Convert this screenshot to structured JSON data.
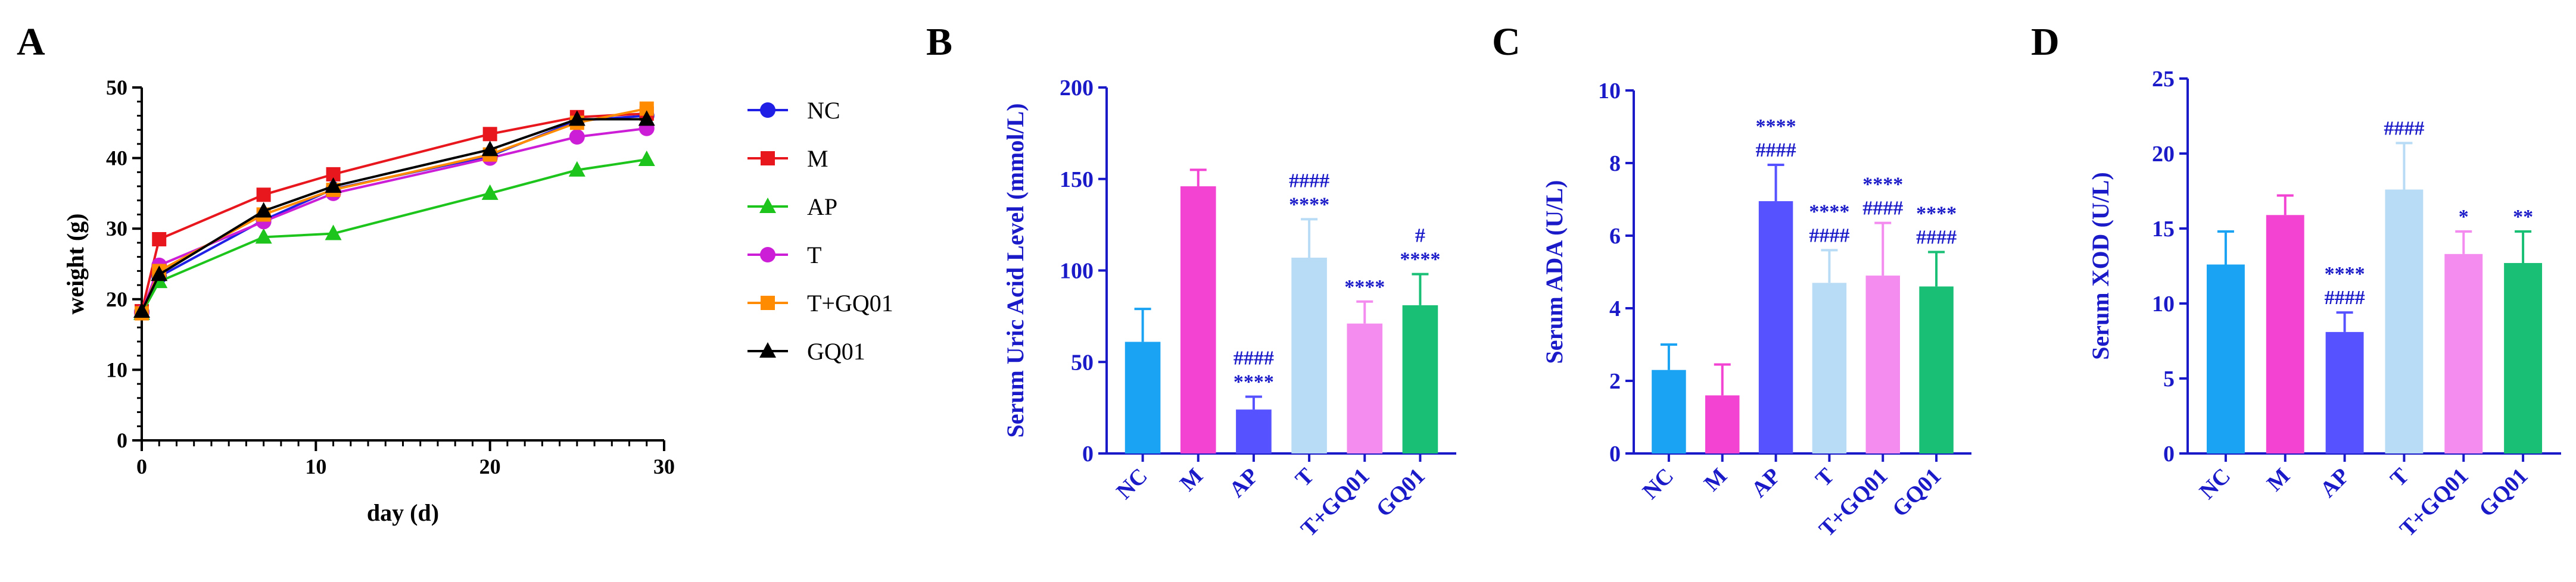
{
  "chart_data": [
    {
      "panel": "A",
      "type": "line",
      "xlabel": "day (d)",
      "ylabel": "weight (g)",
      "xlim": [
        0,
        30
      ],
      "ylim": [
        0,
        50
      ],
      "xticks": [
        0,
        10,
        20,
        30
      ],
      "yticks": [
        0,
        10,
        20,
        30,
        40,
        50
      ],
      "x": [
        0,
        1,
        7,
        11,
        20,
        25,
        29
      ],
      "series": [
        {
          "name": "NC",
          "color": "#1f1fe6",
          "marker": "circle",
          "values": [
            18.2,
            23.2,
            31.2,
            35.6,
            40.3,
            45.3,
            46.0
          ]
        },
        {
          "name": "M",
          "color": "#e8161d",
          "marker": "square",
          "values": [
            18.3,
            28.5,
            34.8,
            37.7,
            43.4,
            45.8,
            46.3
          ]
        },
        {
          "name": "AP",
          "color": "#1cc41c",
          "marker": "triangle",
          "values": [
            18.0,
            22.5,
            28.8,
            29.3,
            35.0,
            38.3,
            39.8
          ]
        },
        {
          "name": "T",
          "color": "#cc1ed6",
          "marker": "circle",
          "values": [
            18.1,
            24.8,
            31.0,
            35.0,
            40.0,
            43.0,
            44.2
          ]
        },
        {
          "name": "T+GQ01",
          "color": "#ff8c00",
          "marker": "square",
          "values": [
            18.0,
            24.0,
            32.0,
            35.5,
            40.5,
            45.0,
            47.0
          ]
        },
        {
          "name": "GQ01",
          "color": "#000000",
          "marker": "triangle",
          "values": [
            18.3,
            23.5,
            32.5,
            36.0,
            41.2,
            45.5,
            45.5
          ]
        }
      ]
    },
    {
      "panel": "B",
      "type": "bar",
      "ylabel": "Serum Uric Acid Level (mmol/L)",
      "ylim": [
        0,
        200
      ],
      "yticks": [
        0,
        50,
        100,
        150,
        200
      ],
      "categories": [
        "NC",
        "M",
        "AP",
        "T",
        "T+GQ01",
        "GQ01"
      ],
      "colors": [
        "#1aa3f2",
        "#f243d2",
        "#5752ff",
        "#b9dcf6",
        "#f48cf0",
        "#18bf74"
      ],
      "values": [
        61,
        146,
        24,
        107,
        71,
        81
      ],
      "errors": [
        18,
        9,
        7,
        21,
        12,
        17
      ],
      "annotations": [
        [],
        [],
        [
          "####",
          "****"
        ],
        [
          "####",
          "****"
        ],
        [
          "****"
        ],
        [
          "#",
          "****"
        ]
      ]
    },
    {
      "panel": "C",
      "type": "bar",
      "ylabel": "Serum ADA (U/L)",
      "ylim": [
        0,
        10
      ],
      "yticks": [
        0,
        2,
        4,
        6,
        8,
        10
      ],
      "categories": [
        "NC",
        "M",
        "AP",
        "T",
        "T+GQ01",
        "GQ01"
      ],
      "colors": [
        "#1aa3f2",
        "#f243d2",
        "#5752ff",
        "#b9dcf6",
        "#f48cf0",
        "#18bf74"
      ],
      "values": [
        2.3,
        1.6,
        6.95,
        4.7,
        4.9,
        4.6
      ],
      "errors": [
        0.7,
        0.85,
        1.0,
        0.9,
        1.45,
        0.95
      ],
      "annotations": [
        [],
        [],
        [
          "****",
          "####"
        ],
        [
          "****",
          "####"
        ],
        [
          "****",
          "####"
        ],
        [
          "****",
          "####"
        ]
      ]
    },
    {
      "panel": "D",
      "type": "bar",
      "ylabel": "Serum XOD (U/L)",
      "ylim": [
        0,
        25
      ],
      "yticks": [
        0,
        5,
        10,
        15,
        20,
        25
      ],
      "categories": [
        "NC",
        "M",
        "AP",
        "T",
        "T+GQ01",
        "GQ01"
      ],
      "colors": [
        "#1aa3f2",
        "#f243d2",
        "#5752ff",
        "#b9dcf6",
        "#f48cf0",
        "#18bf74"
      ],
      "values": [
        12.6,
        15.9,
        8.1,
        17.6,
        13.3,
        12.7
      ],
      "errors": [
        2.2,
        1.3,
        1.3,
        3.1,
        1.5,
        2.1
      ],
      "annotations": [
        [],
        [],
        [
          "****",
          "####"
        ],
        [
          "####"
        ],
        [
          "*"
        ],
        [
          "**"
        ]
      ]
    }
  ]
}
